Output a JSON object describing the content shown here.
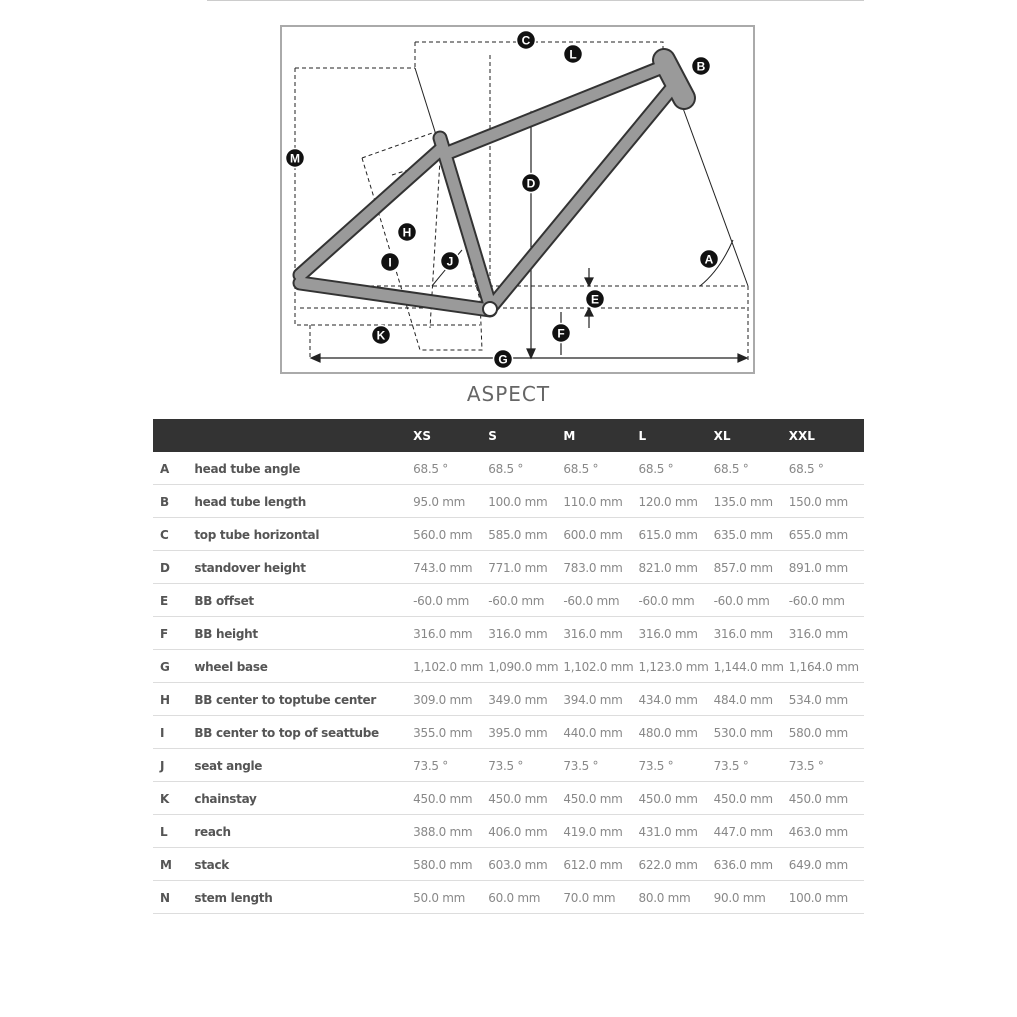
{
  "diagram": {
    "markers": [
      "A",
      "B",
      "C",
      "D",
      "E",
      "F",
      "G",
      "H",
      "I",
      "J",
      "K",
      "L",
      "M"
    ],
    "frame_color": "#999999"
  },
  "title": "ASPECT",
  "table": {
    "sizes": [
      "XS",
      "S",
      "M",
      "L",
      "XL",
      "XXL"
    ],
    "rows": [
      {
        "key": "A",
        "label": "head tube angle",
        "values": [
          "68.5 °",
          "68.5 °",
          "68.5 °",
          "68.5 °",
          "68.5 °",
          "68.5 °"
        ]
      },
      {
        "key": "B",
        "label": "head tube length",
        "values": [
          "95.0 mm",
          "100.0 mm",
          "110.0 mm",
          "120.0 mm",
          "135.0 mm",
          "150.0 mm"
        ]
      },
      {
        "key": "C",
        "label": "top tube horizontal",
        "values": [
          "560.0 mm",
          "585.0 mm",
          "600.0 mm",
          "615.0 mm",
          "635.0 mm",
          "655.0 mm"
        ]
      },
      {
        "key": "D",
        "label": "standover height",
        "values": [
          "743.0 mm",
          "771.0 mm",
          "783.0 mm",
          "821.0 mm",
          "857.0 mm",
          "891.0 mm"
        ]
      },
      {
        "key": "E",
        "label": "BB offset",
        "values": [
          "-60.0 mm",
          "-60.0 mm",
          "-60.0 mm",
          "-60.0 mm",
          "-60.0 mm",
          "-60.0 mm"
        ]
      },
      {
        "key": "F",
        "label": "BB height",
        "values": [
          "316.0 mm",
          "316.0 mm",
          "316.0 mm",
          "316.0 mm",
          "316.0 mm",
          "316.0 mm"
        ]
      },
      {
        "key": "G",
        "label": "wheel base",
        "values": [
          "1,102.0 mm",
          "1,090.0 mm",
          "1,102.0 mm",
          "1,123.0 mm",
          "1,144.0 mm",
          "1,164.0 mm"
        ]
      },
      {
        "key": "H",
        "label": "BB center to toptube center",
        "values": [
          "309.0 mm",
          "349.0 mm",
          "394.0 mm",
          "434.0 mm",
          "484.0 mm",
          "534.0 mm"
        ]
      },
      {
        "key": "I",
        "label": "BB center to top of seattube",
        "values": [
          "355.0 mm",
          "395.0 mm",
          "440.0 mm",
          "480.0 mm",
          "530.0 mm",
          "580.0 mm"
        ]
      },
      {
        "key": "J",
        "label": "seat angle",
        "values": [
          "73.5 °",
          "73.5 °",
          "73.5 °",
          "73.5 °",
          "73.5 °",
          "73.5 °"
        ]
      },
      {
        "key": "K",
        "label": "chainstay",
        "values": [
          "450.0 mm",
          "450.0 mm",
          "450.0 mm",
          "450.0 mm",
          "450.0 mm",
          "450.0 mm"
        ]
      },
      {
        "key": "L",
        "label": "reach",
        "values": [
          "388.0 mm",
          "406.0 mm",
          "419.0 mm",
          "431.0 mm",
          "447.0 mm",
          "463.0 mm"
        ]
      },
      {
        "key": "M",
        "label": "stack",
        "values": [
          "580.0 mm",
          "603.0 mm",
          "612.0 mm",
          "622.0 mm",
          "636.0 mm",
          "649.0 mm"
        ]
      },
      {
        "key": "N",
        "label": "stem length",
        "values": [
          "50.0 mm",
          "60.0 mm",
          "70.0 mm",
          "80.0 mm",
          "90.0 mm",
          "100.0 mm"
        ]
      }
    ]
  }
}
